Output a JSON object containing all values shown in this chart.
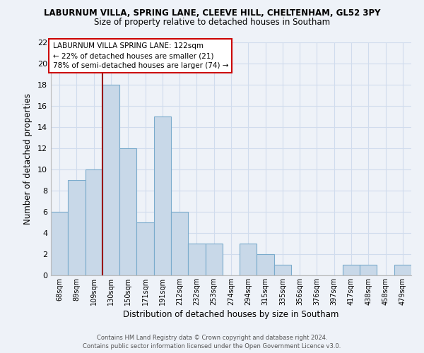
{
  "title1": "LABURNUM VILLA, SPRING LANE, CLEEVE HILL, CHELTENHAM, GL52 3PY",
  "title2": "Size of property relative to detached houses in Southam",
  "xlabel": "Distribution of detached houses by size in Southam",
  "ylabel": "Number of detached properties",
  "categories": [
    "68sqm",
    "89sqm",
    "109sqm",
    "130sqm",
    "150sqm",
    "171sqm",
    "191sqm",
    "212sqm",
    "232sqm",
    "253sqm",
    "274sqm",
    "294sqm",
    "315sqm",
    "335sqm",
    "356sqm",
    "376sqm",
    "397sqm",
    "417sqm",
    "438sqm",
    "458sqm",
    "479sqm"
  ],
  "values": [
    6,
    9,
    10,
    18,
    12,
    5,
    15,
    6,
    3,
    3,
    0,
    3,
    2,
    1,
    0,
    0,
    0,
    1,
    1,
    0,
    1
  ],
  "bar_color": "#c8d8e8",
  "bar_edge_color": "#7aabcc",
  "vline_color": "#990000",
  "annotation_lines": [
    "LABURNUM VILLA SPRING LANE: 122sqm",
    "← 22% of detached houses are smaller (21)",
    "78% of semi-detached houses are larger (74) →"
  ],
  "ylim": [
    0,
    22
  ],
  "yticks": [
    0,
    2,
    4,
    6,
    8,
    10,
    12,
    14,
    16,
    18,
    20,
    22
  ],
  "footer1": "Contains HM Land Registry data © Crown copyright and database right 2024.",
  "footer2": "Contains public sector information licensed under the Open Government Licence v3.0.",
  "bg_color": "#eef2f8",
  "grid_color": "#d0dced"
}
